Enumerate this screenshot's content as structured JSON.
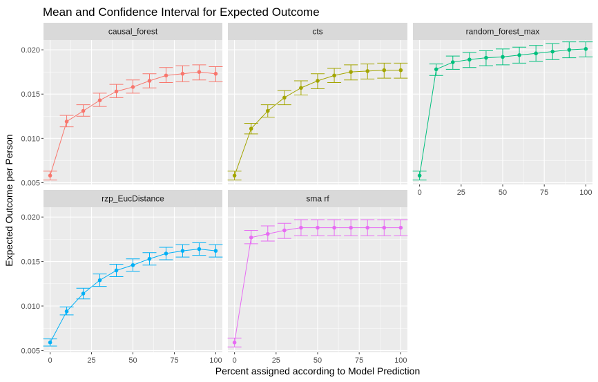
{
  "chart_data": {
    "type": "line",
    "title": "Mean and Confidence Interval for Expected Outcome",
    "xlabel": "Percent assigned according to Model Prediction",
    "ylabel": "Expected Outcome per Person",
    "x": [
      0,
      10,
      20,
      30,
      40,
      50,
      60,
      70,
      80,
      90,
      100
    ],
    "xticks": [
      "0",
      "25",
      "50",
      "75",
      "100"
    ],
    "yticks": [
      "0.005",
      "0.010",
      "0.015",
      "0.020"
    ],
    "xlim": [
      -4,
      104
    ],
    "ylim": [
      0.0048,
      0.0211
    ],
    "grid": true,
    "panels": [
      {
        "name": "causal_forest",
        "color": "#F8766D",
        "values": [
          0.0058,
          0.0119,
          0.0131,
          0.0143,
          0.0153,
          0.0158,
          0.0165,
          0.0171,
          0.0173,
          0.0175,
          0.0173
        ],
        "lower": [
          0.0053,
          0.0113,
          0.0125,
          0.0136,
          0.0146,
          0.0151,
          0.0157,
          0.0163,
          0.0164,
          0.0166,
          0.0164
        ],
        "upper": [
          0.0063,
          0.0126,
          0.0138,
          0.0151,
          0.0161,
          0.0166,
          0.0173,
          0.018,
          0.0182,
          0.0183,
          0.0181
        ]
      },
      {
        "name": "cts",
        "color": "#A3A500",
        "values": [
          0.0058,
          0.0111,
          0.0131,
          0.0146,
          0.0157,
          0.0165,
          0.0171,
          0.0175,
          0.0176,
          0.0177,
          0.0177
        ],
        "lower": [
          0.0053,
          0.0105,
          0.0124,
          0.0138,
          0.0149,
          0.0156,
          0.0163,
          0.0166,
          0.0167,
          0.0168,
          0.0168
        ],
        "upper": [
          0.0063,
          0.0117,
          0.0138,
          0.0154,
          0.0165,
          0.0173,
          0.0179,
          0.0183,
          0.0184,
          0.0185,
          0.0185
        ]
      },
      {
        "name": "random_forest_max",
        "color": "#00BF7D",
        "values": [
          0.0058,
          0.0178,
          0.0186,
          0.0189,
          0.0191,
          0.0192,
          0.0194,
          0.0196,
          0.0198,
          0.02,
          0.0201
        ],
        "lower": [
          0.0053,
          0.0171,
          0.0178,
          0.018,
          0.0182,
          0.0183,
          0.0185,
          0.0187,
          0.0189,
          0.0191,
          0.0192
        ],
        "upper": [
          0.0063,
          0.0184,
          0.0193,
          0.0197,
          0.0199,
          0.0201,
          0.0203,
          0.0205,
          0.0207,
          0.0209,
          0.0209
        ]
      },
      {
        "name": "rzp_EucDistance",
        "color": "#00B0F6",
        "values": [
          0.0059,
          0.0094,
          0.0114,
          0.0129,
          0.014,
          0.0146,
          0.0153,
          0.0159,
          0.0162,
          0.0164,
          0.0162
        ],
        "lower": [
          0.0055,
          0.009,
          0.0108,
          0.0122,
          0.0133,
          0.0139,
          0.0146,
          0.0152,
          0.0155,
          0.0157,
          0.0155
        ],
        "upper": [
          0.0063,
          0.0099,
          0.012,
          0.0136,
          0.0147,
          0.0153,
          0.016,
          0.0166,
          0.0169,
          0.0171,
          0.0169
        ]
      },
      {
        "name": "sma rf",
        "color": "#E76BF3",
        "values": [
          0.0059,
          0.0177,
          0.0181,
          0.0185,
          0.0188,
          0.0188,
          0.0188,
          0.0188,
          0.0188,
          0.0188,
          0.0188
        ],
        "lower": [
          0.0054,
          0.017,
          0.0173,
          0.0176,
          0.0179,
          0.0179,
          0.0179,
          0.0179,
          0.0179,
          0.0179,
          0.0179
        ],
        "upper": [
          0.0064,
          0.0185,
          0.019,
          0.0193,
          0.0197,
          0.0197,
          0.0197,
          0.0197,
          0.0197,
          0.0197,
          0.0197
        ]
      }
    ]
  }
}
